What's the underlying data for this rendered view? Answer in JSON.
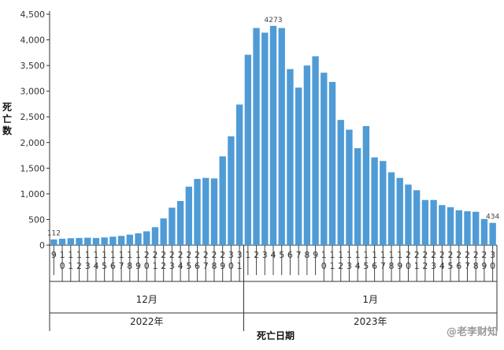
{
  "chart_data": {
    "type": "bar",
    "title": "",
    "ylabel": "死亡数",
    "xlabel": "死亡日期",
    "ylim": [
      0,
      4500
    ],
    "yticks": [
      "0",
      "500",
      "1,000",
      "1,500",
      "2,000",
      "2,500",
      "3,000",
      "3,500",
      "4,000",
      "4,500"
    ],
    "bar_color": "#4f9bd6",
    "categories": [
      "9",
      "10",
      "11",
      "12",
      "13",
      "14",
      "15",
      "16",
      "17",
      "18",
      "19",
      "20",
      "21",
      "22",
      "23",
      "24",
      "25",
      "26",
      "27",
      "28",
      "29",
      "30",
      "31",
      "1",
      "2",
      "3",
      "4",
      "5",
      "6",
      "7",
      "8",
      "9",
      "10",
      "11",
      "12",
      "13",
      "14",
      "15",
      "16",
      "17",
      "18",
      "19",
      "20",
      "21",
      "22",
      "23",
      "24",
      "25",
      "26",
      "27",
      "28",
      "29",
      "30"
    ],
    "values": [
      112,
      125,
      135,
      140,
      145,
      140,
      150,
      165,
      180,
      205,
      230,
      270,
      350,
      520,
      730,
      860,
      1140,
      1290,
      1310,
      1300,
      1730,
      2120,
      2740,
      3710,
      4230,
      4140,
      4273,
      4230,
      3430,
      3070,
      3500,
      3680,
      3360,
      3180,
      2440,
      2250,
      1890,
      2320,
      1710,
      1640,
      1420,
      1310,
      1180,
      1070,
      880,
      880,
      780,
      740,
      680,
      660,
      650,
      510,
      434
    ],
    "data_labels": [
      {
        "index": 0,
        "text": "112"
      },
      {
        "index": 26,
        "text": "4273"
      },
      {
        "index": 52,
        "text": "434"
      }
    ],
    "month_groups": [
      {
        "label": "12月",
        "start": 0,
        "end": 22
      },
      {
        "label": "1月",
        "start": 23,
        "end": 52
      }
    ],
    "year_groups": [
      {
        "label": "2022年",
        "start": 0,
        "end": 22
      },
      {
        "label": "2023年",
        "start": 23,
        "end": 52
      }
    ]
  },
  "watermark": "@老李财知"
}
